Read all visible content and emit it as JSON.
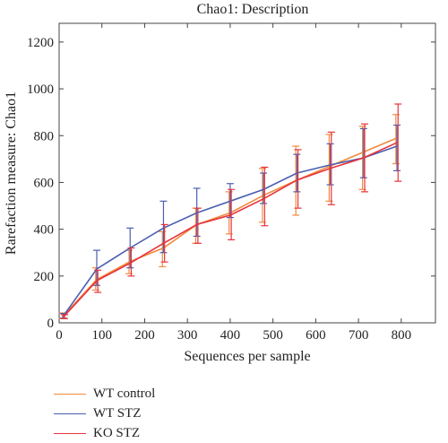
{
  "chart_data": {
    "type": "line",
    "title": "Chao1: Description",
    "xlabel": "Sequences per sample",
    "ylabel": "Rarefaction measure: Chao1",
    "xlim": [
      0,
      880
    ],
    "ylim": [
      0,
      1280
    ],
    "xticks": [
      0,
      100,
      200,
      300,
      400,
      500,
      600,
      700,
      800
    ],
    "yticks": [
      0,
      200,
      400,
      600,
      800,
      1000,
      1200
    ],
    "grid": false,
    "legend_position": "bottom-left",
    "x": [
      10,
      88,
      166,
      244,
      322,
      400,
      478,
      556,
      634,
      712,
      790
    ],
    "series": [
      {
        "name": "WT control",
        "color": "#f08a3c",
        "values": [
          30,
          185,
          262,
          320,
          420,
          470,
          545,
          610,
          670,
          730,
          790
        ],
        "err_low": [
          18,
          140,
          210,
          240,
          340,
          380,
          430,
          460,
          520,
          570,
          680
        ],
        "err_high": [
          42,
          235,
          310,
          390,
          490,
          560,
          660,
          755,
          805,
          840,
          890
        ]
      },
      {
        "name": "WT STZ",
        "color": "#4a5fb0",
        "values": [
          30,
          230,
          320,
          405,
          470,
          520,
          570,
          640,
          675,
          705,
          755
        ],
        "err_low": [
          20,
          160,
          235,
          300,
          370,
          450,
          510,
          560,
          590,
          620,
          650
        ],
        "err_high": [
          40,
          310,
          405,
          520,
          575,
          595,
          640,
          720,
          765,
          830,
          845
        ]
      },
      {
        "name": "KO STZ",
        "color": "#e8323c",
        "values": [
          25,
          180,
          255,
          340,
          420,
          460,
          530,
          610,
          660,
          705,
          770
        ],
        "err_low": [
          18,
          130,
          200,
          260,
          340,
          355,
          415,
          490,
          505,
          560,
          605
        ],
        "err_high": [
          35,
          225,
          320,
          420,
          490,
          570,
          665,
          740,
          815,
          850,
          935
        ]
      }
    ]
  }
}
